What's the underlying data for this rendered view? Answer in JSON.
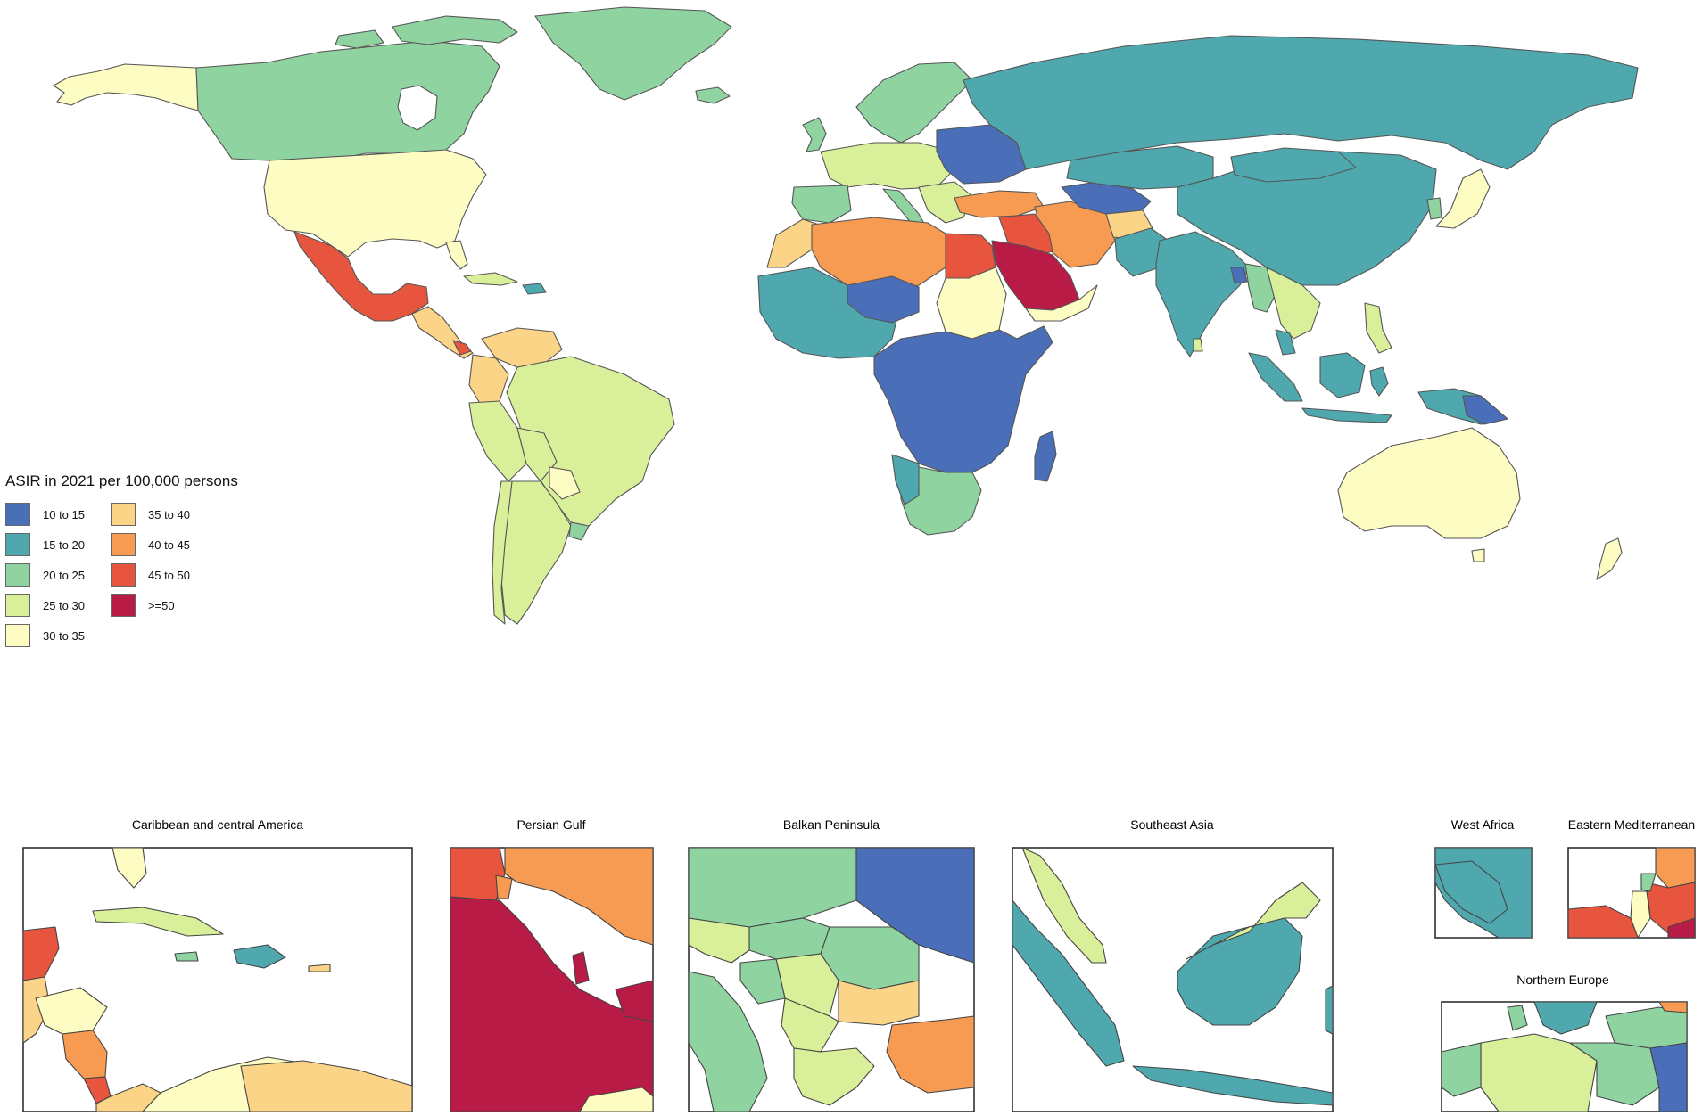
{
  "legend": {
    "title": "ASIR in 2021 per 100,000 persons",
    "items": [
      {
        "label": "10 to 15",
        "color": "#4a6fb8"
      },
      {
        "label": "15 to 20",
        "color": "#4ea8ae"
      },
      {
        "label": "20 to 25",
        "color": "#8fd3a0"
      },
      {
        "label": "25 to 30",
        "color": "#d9ef9a"
      },
      {
        "label": "30 to 35",
        "color": "#fdfcc2"
      },
      {
        "label": "35 to 40",
        "color": "#fcd487"
      },
      {
        "label": "40 to 45",
        "color": "#f79a52"
      },
      {
        "label": "45 to 50",
        "color": "#e7553f"
      },
      {
        "label": ">=50",
        "color": "#b81c46"
      }
    ]
  },
  "insets": {
    "caribbean": "Caribbean and central America",
    "persian_gulf": "Persian Gulf",
    "balkan": "Balkan Peninsula",
    "southeast_asia": "Southeast Asia",
    "west_africa": "West Africa",
    "eastern_med": "Eastern Mediterranean",
    "northern_europe": "Northern Europe"
  }
}
